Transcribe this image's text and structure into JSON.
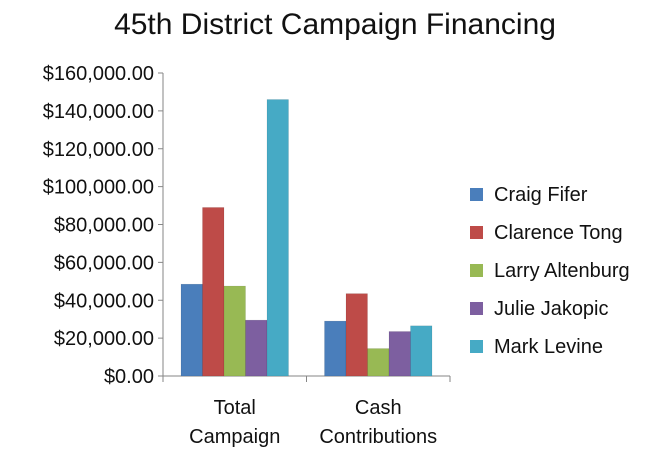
{
  "chart_data": {
    "type": "bar",
    "title": "45th District Campaign Financing",
    "categories": [
      "Total Campaign",
      "Cash Contributions"
    ],
    "category_lines": [
      [
        "Total",
        "Campaign"
      ],
      [
        "Cash",
        "Contributions"
      ]
    ],
    "series": [
      {
        "name": "Craig Fifer",
        "color": "#4a7ebb",
        "values": [
          48500,
          29000
        ]
      },
      {
        "name": "Clarence Tong",
        "color": "#be4b48",
        "values": [
          89000,
          43500
        ]
      },
      {
        "name": "Larry Altenburg",
        "color": "#98b954",
        "values": [
          47500,
          14500
        ]
      },
      {
        "name": "Julie Jakopic",
        "color": "#7d5fa0",
        "values": [
          29500,
          23500
        ]
      },
      {
        "name": "Mark Levine",
        "color": "#46aac5",
        "values": [
          146000,
          26500
        ]
      }
    ],
    "ylim": [
      0,
      160000
    ],
    "y_ticks": [
      {
        "value": 0,
        "label": "$0.00"
      },
      {
        "value": 20000,
        "label": "$20,000.00"
      },
      {
        "value": 40000,
        "label": "$40,000.00"
      },
      {
        "value": 60000,
        "label": "$60,000.00"
      },
      {
        "value": 80000,
        "label": "$80,000.00"
      },
      {
        "value": 100000,
        "label": "$100,000.00"
      },
      {
        "value": 120000,
        "label": "$120,000.00"
      },
      {
        "value": 140000,
        "label": "$140,000.00"
      },
      {
        "value": 160000,
        "label": "$160,000.00"
      }
    ],
    "xlabel": "",
    "ylabel": "",
    "grid": false,
    "legend_position": "right"
  }
}
